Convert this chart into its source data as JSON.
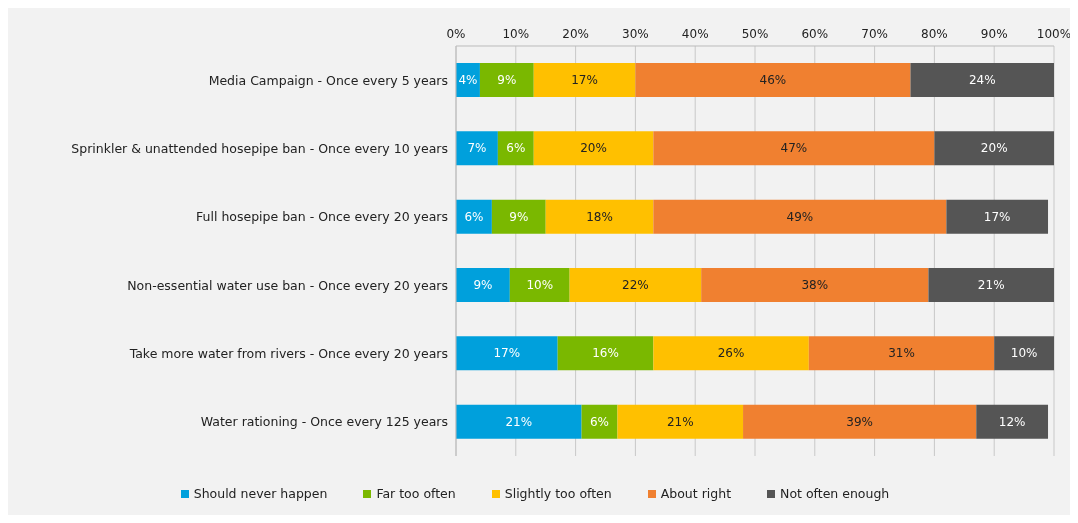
{
  "chart_data": {
    "type": "bar",
    "orientation": "horizontal",
    "stacked": true,
    "categories": [
      "Media Campaign - Once every 5 years",
      "Sprinkler & unattended hosepipe ban - Once every 10 years",
      "Full hosepipe ban - Once every 20 years",
      "Non-essential water use ban - Once every 20 years",
      "Take more water from rivers - Once every 20 years",
      "Water rationing - Once every 125 years"
    ],
    "series": [
      {
        "name": "Should never happen",
        "color": "#00a0dc",
        "values": [
          4,
          7,
          6,
          9,
          17,
          21
        ],
        "value_labels": [
          "4%",
          "7%",
          "6%",
          "9%",
          "17%",
          "21%"
        ]
      },
      {
        "name": "Far too often",
        "color": "#7ab800",
        "values": [
          9,
          6,
          9,
          10,
          16,
          6
        ],
        "value_labels": [
          "9%",
          "6%",
          "9%",
          "10%",
          "16%",
          "6%"
        ]
      },
      {
        "name": "Slightly too often",
        "color": "#ffc000",
        "values": [
          17,
          20,
          18,
          22,
          26,
          21
        ],
        "value_labels": [
          "17%",
          "20%",
          "18%",
          "22%",
          "26%",
          "21%"
        ]
      },
      {
        "name": "About right",
        "color": "#f08030",
        "values": [
          46,
          47,
          49,
          38,
          31,
          39
        ],
        "value_labels": [
          "46%",
          "47%",
          "49%",
          "38%",
          "31%",
          "39%"
        ]
      },
      {
        "name": "Not often enough",
        "color": "#555555",
        "values": [
          24,
          20,
          17,
          21,
          10,
          12
        ],
        "value_labels": [
          "24%",
          "20%",
          "17%",
          "21%",
          "10%",
          "12%"
        ]
      }
    ],
    "xlim": [
      0,
      100
    ],
    "xticks": [
      {
        "value": 0,
        "label": "0%"
      },
      {
        "value": 10,
        "label": "10%"
      },
      {
        "value": 20,
        "label": "20%"
      },
      {
        "value": 30,
        "label": "30%"
      },
      {
        "value": 40,
        "label": "40%"
      },
      {
        "value": 50,
        "label": "50%"
      },
      {
        "value": 60,
        "label": "60%"
      },
      {
        "value": 70,
        "label": "70%"
      },
      {
        "value": 80,
        "label": "80%"
      },
      {
        "value": 90,
        "label": "90%"
      },
      {
        "value": 100,
        "label": "100%"
      }
    ],
    "grid": "x",
    "legend": "bottom"
  }
}
